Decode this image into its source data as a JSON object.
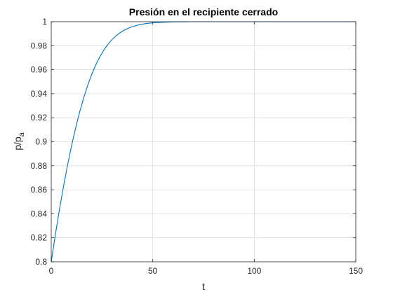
{
  "chart_data": {
    "type": "line",
    "title": "Presión en el recipiente cerrado",
    "xlabel": "t",
    "ylabel": {
      "main": "p/p",
      "subscript": "a"
    },
    "xlim": [
      0,
      150
    ],
    "ylim": [
      0.8,
      1.0
    ],
    "xticks": [
      0,
      50,
      100,
      150
    ],
    "yticks": [
      0.8,
      0.82,
      0.84,
      0.86,
      0.88,
      0.9,
      0.92,
      0.94,
      0.96,
      0.98,
      1
    ],
    "xtick_labels": [
      "0",
      "50",
      "100",
      "150"
    ],
    "ytick_labels": [
      "0.8",
      "0.82",
      "0.84",
      "0.86",
      "0.88",
      "0.9",
      "0.92",
      "0.94",
      "0.96",
      "0.98",
      "1"
    ],
    "grid": true,
    "series": [
      {
        "color": "#0072bd",
        "x": [
          0,
          2,
          4,
          6,
          8,
          10,
          12,
          14,
          16,
          18,
          20,
          22,
          24,
          26,
          28,
          30,
          32,
          34,
          36,
          38,
          40,
          42,
          44,
          46,
          48,
          50,
          55,
          60,
          65,
          70,
          75,
          80,
          90,
          100,
          110,
          120,
          130,
          140,
          150
        ],
        "y": [
          0.8,
          0.8223,
          0.8431,
          0.8624,
          0.8803,
          0.8966,
          0.9114,
          0.9248,
          0.9367,
          0.9472,
          0.9564,
          0.9643,
          0.971,
          0.9766,
          0.9813,
          0.9852,
          0.9884,
          0.9909,
          0.993,
          0.9946,
          0.9959,
          0.9969,
          0.9977,
          0.9983,
          0.9987,
          0.9991,
          0.9995,
          0.9998,
          0.9999,
          1.0,
          1.0,
          1.0,
          1.0,
          1.0,
          1.0,
          1.0,
          1.0,
          1.0,
          1.0
        ]
      }
    ]
  }
}
